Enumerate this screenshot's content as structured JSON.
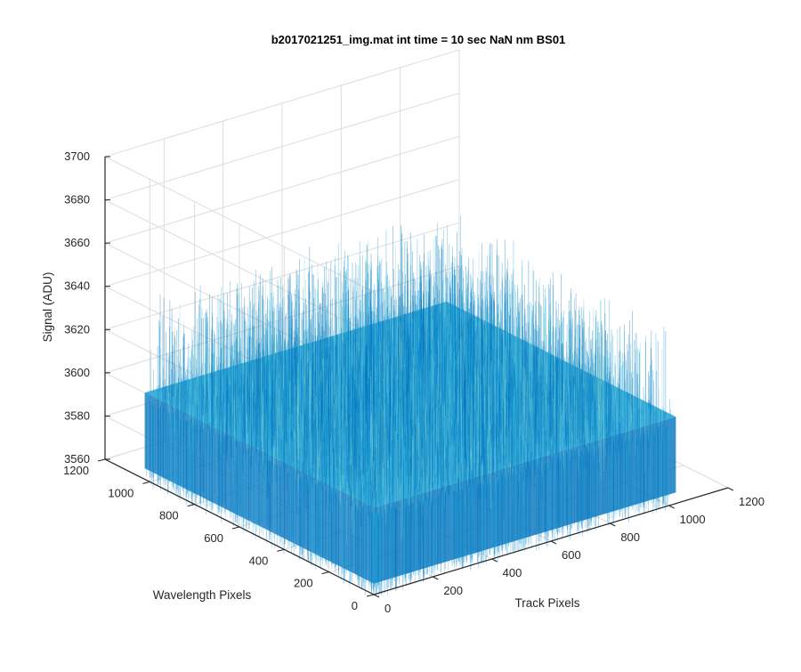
{
  "chart_data": {
    "type": "surface",
    "title": "b2017021251_img.mat int time = 10 sec  NaN nm BS01",
    "xlabel": "Track Pixels",
    "ylabel": "Wavelength Pixels",
    "zlabel": "Signal (ADU)",
    "xlim": [
      0,
      1200
    ],
    "ylim": [
      0,
      1200
    ],
    "zlim": [
      3560,
      3700
    ],
    "x_ticks": [
      "0",
      "200",
      "400",
      "600",
      "800",
      "1000",
      "1200"
    ],
    "y_ticks": [
      "0",
      "200",
      "400",
      "600",
      "800",
      "1000",
      "1200"
    ],
    "z_ticks": [
      "3560",
      "3580",
      "3600",
      "3620",
      "3640",
      "3660",
      "3680",
      "3700"
    ],
    "data_extent": {
      "x": [
        1,
        1024
      ],
      "y": [
        1,
        1024
      ]
    },
    "signal": {
      "mean": 3600,
      "min": 3565,
      "max": 3645
    },
    "grid": true,
    "colormap": "parula",
    "colors": {
      "low": "#0072bd",
      "mid": "#1fa3d6",
      "high": "#7fd0ce"
    }
  }
}
